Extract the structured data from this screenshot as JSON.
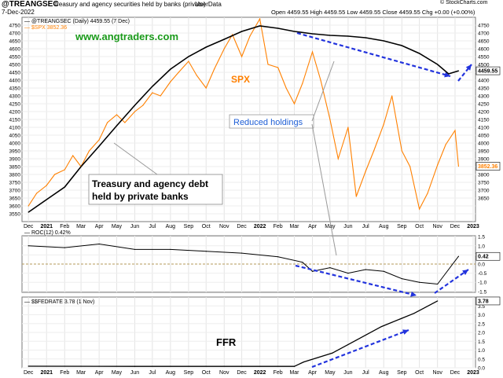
{
  "header": {
    "title": "@TREANGSEC",
    "subtitle": "treasury and agency securities held by banks (private)",
    "source": "UserData",
    "date": "7-Dec-2022",
    "copyright": "© StockCharts.com",
    "ohlc": "Open 4459.55  High 4459.55  Low 4459.55  Close 4459.55  Chg +0.00 (+0.00%)"
  },
  "chart_data": [
    {
      "type": "line",
      "panel": "main",
      "legend": [
        "@TREANGSEC (Daily) 4459.55 (7 Dec)",
        "$SPX 3852.36"
      ],
      "x_ticks": [
        "Dec",
        "2021",
        "Feb",
        "Mar",
        "Apr",
        "May",
        "Jun",
        "Jul",
        "Aug",
        "Sep",
        "Oct",
        "Nov",
        "Dec",
        "2022",
        "Feb",
        "Mar",
        "Apr",
        "May",
        "Jun",
        "Jul",
        "Aug",
        "Sep",
        "Oct",
        "Nov",
        "Dec",
        "2023"
      ],
      "ylim": [
        3500,
        4800
      ],
      "y_ticks": [
        3550,
        3600,
        3650,
        3700,
        3750,
        3800,
        3850,
        3900,
        3950,
        4000,
        4050,
        4100,
        4150,
        4200,
        4250,
        4300,
        4350,
        4400,
        4450,
        4500,
        4550,
        4600,
        4650,
        4700,
        4750
      ],
      "right_ticks": [
        3650,
        3700,
        3750,
        3800,
        3850,
        3900,
        3950,
        4000,
        4050,
        4100,
        4150,
        4200,
        4250,
        4300,
        4350,
        4400,
        4450,
        4500,
        4550,
        4600,
        4650,
        4700,
        4750
      ],
      "last_values": {
        "treangsec": "4459.55",
        "spx": "3852.36"
      },
      "series": [
        {
          "name": "@TREANGSEC",
          "color": "#000000",
          "x": [
            "2020-12-01",
            "2021-01-01",
            "2021-02-01",
            "2021-03-01",
            "2021-04-01",
            "2021-05-01",
            "2021-06-01",
            "2021-07-01",
            "2021-08-01",
            "2021-09-01",
            "2021-10-01",
            "2021-11-01",
            "2021-12-01",
            "2022-01-01",
            "2022-02-01",
            "2022-03-01",
            "2022-04-01",
            "2022-05-01",
            "2022-06-01",
            "2022-07-01",
            "2022-08-01",
            "2022-09-01",
            "2022-10-01",
            "2022-11-01",
            "2022-11-20",
            "2022-12-07"
          ],
          "values": [
            3560,
            3640,
            3720,
            3850,
            3980,
            4110,
            4240,
            4360,
            4470,
            4550,
            4610,
            4660,
            4710,
            4745,
            4730,
            4710,
            4695,
            4685,
            4680,
            4670,
            4650,
            4620,
            4570,
            4500,
            4440,
            4459.55
          ]
        },
        {
          "name": "$SPX",
          "color": "#ff8000",
          "x": [
            "2020-12-01",
            "2020-12-15",
            "2021-01-01",
            "2021-01-15",
            "2021-02-01",
            "2021-02-15",
            "2021-03-01",
            "2021-03-15",
            "2021-04-01",
            "2021-04-15",
            "2021-05-01",
            "2021-05-15",
            "2021-06-01",
            "2021-06-15",
            "2021-07-01",
            "2021-07-15",
            "2021-08-01",
            "2021-08-15",
            "2021-09-01",
            "2021-09-15",
            "2021-10-01",
            "2021-10-15",
            "2021-11-01",
            "2021-11-15",
            "2021-12-01",
            "2021-12-15",
            "2022-01-01",
            "2022-01-15",
            "2022-02-01",
            "2022-02-15",
            "2022-03-01",
            "2022-03-15",
            "2022-04-01",
            "2022-04-15",
            "2022-05-01",
            "2022-05-15",
            "2022-06-01",
            "2022-06-15",
            "2022-07-01",
            "2022-07-15",
            "2022-08-01",
            "2022-08-15",
            "2022-09-01",
            "2022-09-15",
            "2022-10-01",
            "2022-10-15",
            "2022-11-01",
            "2022-11-15",
            "2022-12-01",
            "2022-12-07"
          ],
          "values": [
            3600,
            3680,
            3730,
            3800,
            3830,
            3920,
            3850,
            3950,
            4020,
            4130,
            4180,
            4130,
            4200,
            4240,
            4320,
            4300,
            4390,
            4450,
            4520,
            4430,
            4350,
            4470,
            4600,
            4690,
            4550,
            4680,
            4790,
            4500,
            4480,
            4350,
            4250,
            4380,
            4580,
            4400,
            4150,
            3900,
            4100,
            3660,
            3820,
            3950,
            4120,
            4300,
            3950,
            3850,
            3580,
            3680,
            3860,
            3990,
            4080,
            3852.36
          ]
        }
      ],
      "annotations": [
        "www.angtraders.com",
        "SPX",
        "Reduced holdings",
        "Treasury and agency debt held by private banks"
      ]
    },
    {
      "type": "line",
      "panel": "roc",
      "legend": "ROC(12) 0.42%",
      "ylim": [
        -1.5,
        1.5
      ],
      "y_ticks": [
        "1.5",
        "1.0",
        "0.5",
        "0.0",
        "-0.5",
        "-1.0",
        "-1.5"
      ],
      "last_value": "0.42",
      "series": [
        {
          "name": "ROC(12)",
          "color": "#000000",
          "x": [
            "2020-12-01",
            "2021-02-01",
            "2021-04-01",
            "2021-06-01",
            "2021-08-01",
            "2021-10-01",
            "2021-12-01",
            "2022-02-01",
            "2022-03-15",
            "2022-04-01",
            "2022-05-01",
            "2022-06-01",
            "2022-07-01",
            "2022-08-01",
            "2022-09-01",
            "2022-10-01",
            "2022-11-01",
            "2022-12-07"
          ],
          "values": [
            1.0,
            0.9,
            1.1,
            0.8,
            0.8,
            0.7,
            0.6,
            0.4,
            0.1,
            -0.4,
            -0.2,
            -0.5,
            -0.3,
            -0.4,
            -0.8,
            -1.0,
            -1.1,
            0.42
          ]
        }
      ]
    },
    {
      "type": "line",
      "panel": "ffr",
      "legend": "$$FEDRATE 3.78 (1 Nov)",
      "ylim": [
        0,
        4.0
      ],
      "y_ticks": [
        "3.5",
        "3.0",
        "2.5",
        "2.0",
        "1.5",
        "1.0",
        "0.5",
        "0.0"
      ],
      "last_value": "3.78",
      "annotations": [
        "FFR"
      ],
      "series": [
        {
          "name": "$$FEDRATE",
          "color": "#000000",
          "x": [
            "2020-12-01",
            "2021-06-01",
            "2022-03-01",
            "2022-03-17",
            "2022-05-05",
            "2022-06-16",
            "2022-07-28",
            "2022-09-22",
            "2022-11-01"
          ],
          "values": [
            0.09,
            0.08,
            0.08,
            0.33,
            0.83,
            1.58,
            2.33,
            3.08,
            3.78
          ]
        }
      ]
    }
  ]
}
